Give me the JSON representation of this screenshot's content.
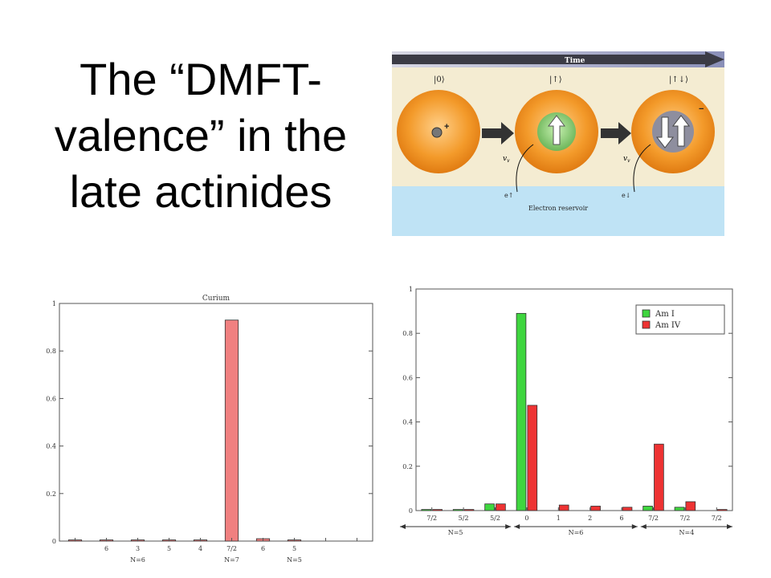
{
  "slide": {
    "title": "The “DMFT-valence” in the late actinides"
  },
  "diagram": {
    "time_label": "Time",
    "states": [
      "|0⟩",
      "|↑⟩",
      "|↑↓⟩"
    ],
    "charge_plus": "+",
    "charge_minus": "−",
    "vv_label": "v",
    "vv_sub": "v",
    "electron_up": "e↑",
    "electron_down": "e↓",
    "reservoir_label": "Electron reservoir",
    "colors": {
      "orange": "#f39a2a",
      "green": "#7cc06a",
      "reservoir": "#bfe3f5",
      "band_top": "#8a8fb8"
    }
  },
  "chart_data": [
    {
      "type": "bar",
      "title": "Curium",
      "ylim": [
        0,
        1
      ],
      "yticks": [
        "0",
        "0.2",
        "0.4",
        "0.6",
        "0.8",
        "1"
      ],
      "categories": [
        "",
        "6",
        "3",
        "5",
        "4",
        "7/2",
        "6",
        "5",
        "",
        ""
      ],
      "values": [
        0.005,
        0.005,
        0.005,
        0.005,
        0.005,
        0.93,
        0.01,
        0.005,
        0.0,
        0.0
      ],
      "groups": [
        "N=6",
        "N=7",
        "N=5"
      ],
      "bar_color": "#f08080"
    },
    {
      "type": "bar",
      "ylim": [
        0,
        1
      ],
      "yticks": [
        "0",
        "0.2",
        "0.4",
        "0.6",
        "0.8",
        "1"
      ],
      "categories": [
        "7/2",
        "5/2",
        "5/2",
        "0",
        "1",
        "2",
        "6",
        "7/2",
        "7/2",
        "7/2"
      ],
      "series": [
        {
          "name": "Am I",
          "color": "#3fd63f",
          "values": [
            0.005,
            0.005,
            0.03,
            0.89,
            0.0,
            0.0,
            0.0,
            0.02,
            0.015,
            0.0
          ]
        },
        {
          "name": "Am IV",
          "color": "#ee3333",
          "values": [
            0.005,
            0.005,
            0.03,
            0.475,
            0.025,
            0.02,
            0.015,
            0.3,
            0.04,
            0.005
          ]
        }
      ],
      "groups": [
        "N=5",
        "N=6",
        "N=4"
      ],
      "legend": "top-right"
    }
  ]
}
